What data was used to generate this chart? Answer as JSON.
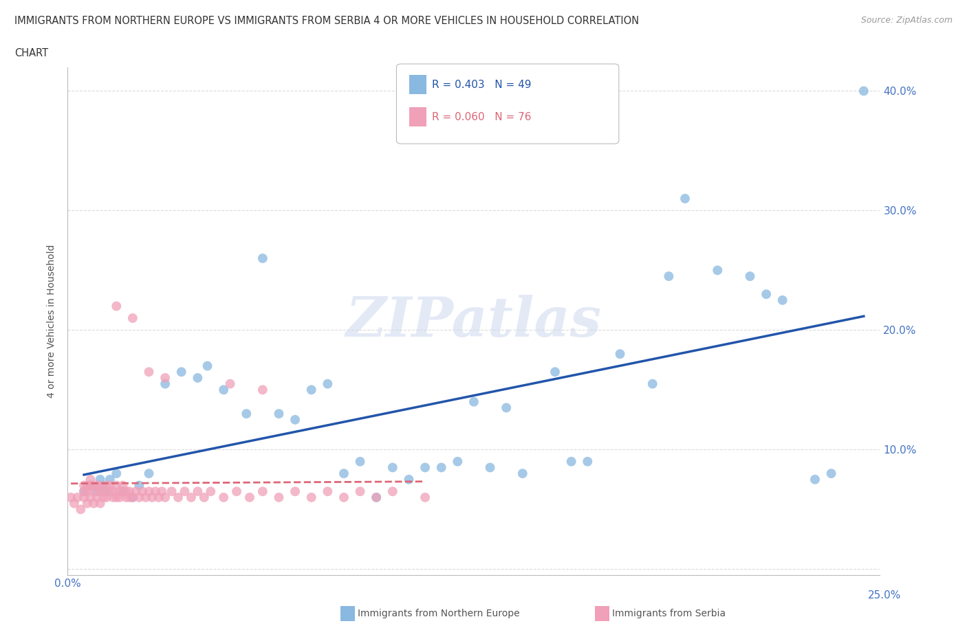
{
  "title_line1": "IMMIGRANTS FROM NORTHERN EUROPE VS IMMIGRANTS FROM SERBIA 4 OR MORE VEHICLES IN HOUSEHOLD CORRELATION",
  "title_line2": "CHART",
  "source": "Source: ZipAtlas.com",
  "ylabel": "4 or more Vehicles in Household",
  "xlim": [
    0.0,
    0.25
  ],
  "ylim": [
    -0.005,
    0.42
  ],
  "x_ticks": [
    0.0,
    0.05,
    0.1,
    0.15,
    0.2,
    0.25
  ],
  "y_ticks": [
    0.0,
    0.1,
    0.2,
    0.3,
    0.4
  ],
  "x_tick_labels": [
    "0.0%",
    "",
    "",
    "",
    "",
    "25.0%"
  ],
  "y_tick_labels": [
    "",
    "10.0%",
    "20.0%",
    "30.0%",
    "40.0%"
  ],
  "blue_R": 0.403,
  "blue_N": 49,
  "pink_R": 0.06,
  "pink_N": 76,
  "blue_color": "#89b8e0",
  "pink_color": "#f0a0b8",
  "blue_line_color": "#2255aa",
  "pink_line_color": "#dd6677",
  "blue_scatter_x": [
    0.005,
    0.007,
    0.009,
    0.01,
    0.011,
    0.012,
    0.013,
    0.015,
    0.017,
    0.02,
    0.022,
    0.025,
    0.03,
    0.035,
    0.04,
    0.043,
    0.048,
    0.055,
    0.06,
    0.065,
    0.07,
    0.075,
    0.08,
    0.085,
    0.09,
    0.095,
    0.1,
    0.105,
    0.11,
    0.115,
    0.12,
    0.125,
    0.13,
    0.135,
    0.14,
    0.15,
    0.155,
    0.16,
    0.17,
    0.18,
    0.185,
    0.19,
    0.2,
    0.21,
    0.215,
    0.22,
    0.23,
    0.235,
    0.245
  ],
  "blue_scatter_y": [
    0.065,
    0.07,
    0.065,
    0.075,
    0.07,
    0.065,
    0.075,
    0.08,
    0.065,
    0.06,
    0.07,
    0.08,
    0.155,
    0.165,
    0.16,
    0.17,
    0.15,
    0.13,
    0.26,
    0.13,
    0.125,
    0.15,
    0.155,
    0.08,
    0.09,
    0.06,
    0.085,
    0.075,
    0.085,
    0.085,
    0.09,
    0.14,
    0.085,
    0.135,
    0.08,
    0.165,
    0.09,
    0.09,
    0.18,
    0.155,
    0.245,
    0.31,
    0.25,
    0.245,
    0.23,
    0.225,
    0.075,
    0.08,
    0.4
  ],
  "pink_scatter_x": [
    0.001,
    0.002,
    0.003,
    0.004,
    0.005,
    0.005,
    0.005,
    0.006,
    0.006,
    0.006,
    0.007,
    0.007,
    0.007,
    0.008,
    0.008,
    0.008,
    0.009,
    0.009,
    0.01,
    0.01,
    0.01,
    0.011,
    0.011,
    0.012,
    0.012,
    0.013,
    0.013,
    0.014,
    0.014,
    0.015,
    0.015,
    0.016,
    0.016,
    0.017,
    0.017,
    0.018,
    0.018,
    0.019,
    0.019,
    0.02,
    0.021,
    0.022,
    0.023,
    0.024,
    0.025,
    0.026,
    0.027,
    0.028,
    0.029,
    0.03,
    0.032,
    0.034,
    0.036,
    0.038,
    0.04,
    0.042,
    0.044,
    0.048,
    0.052,
    0.056,
    0.06,
    0.065,
    0.07,
    0.075,
    0.08,
    0.085,
    0.09,
    0.095,
    0.1,
    0.11,
    0.015,
    0.02,
    0.025,
    0.03,
    0.05,
    0.06
  ],
  "pink_scatter_y": [
    0.06,
    0.055,
    0.06,
    0.05,
    0.06,
    0.065,
    0.07,
    0.055,
    0.065,
    0.07,
    0.06,
    0.07,
    0.075,
    0.055,
    0.065,
    0.07,
    0.06,
    0.07,
    0.055,
    0.065,
    0.07,
    0.06,
    0.065,
    0.06,
    0.07,
    0.065,
    0.07,
    0.06,
    0.065,
    0.06,
    0.07,
    0.065,
    0.06,
    0.065,
    0.07,
    0.06,
    0.065,
    0.06,
    0.065,
    0.06,
    0.065,
    0.06,
    0.065,
    0.06,
    0.065,
    0.06,
    0.065,
    0.06,
    0.065,
    0.06,
    0.065,
    0.06,
    0.065,
    0.06,
    0.065,
    0.06,
    0.065,
    0.06,
    0.065,
    0.06,
    0.065,
    0.06,
    0.065,
    0.06,
    0.065,
    0.06,
    0.065,
    0.06,
    0.065,
    0.06,
    0.22,
    0.21,
    0.165,
    0.16,
    0.155,
    0.15
  ]
}
